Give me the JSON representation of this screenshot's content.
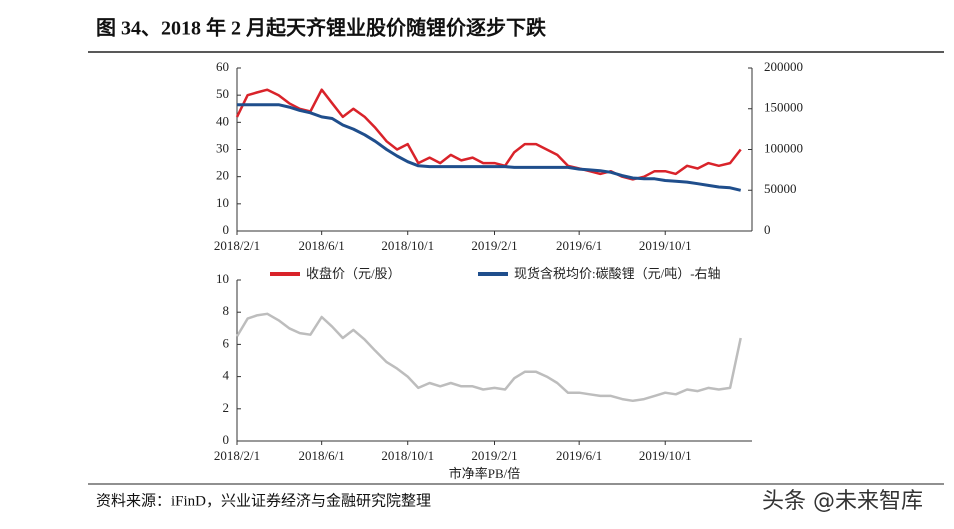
{
  "title": "图 34、2018 年 2 月起天齐锂业股价随锂价逐步下跌",
  "source": "资料来源：iFinD，兴业证券经济与金融研究院整理",
  "watermark": "头条 @未来智库",
  "chart_data": [
    {
      "type": "line",
      "x": [
        "2018/2/1",
        "2018/2/16",
        "2018/3/1",
        "2018/3/16",
        "2018/4/1",
        "2018/4/16",
        "2018/5/1",
        "2018/5/16",
        "2018/6/1",
        "2018/6/16",
        "2018/7/1",
        "2018/7/16",
        "2018/8/1",
        "2018/8/16",
        "2018/9/1",
        "2018/9/16",
        "2018/10/1",
        "2018/10/16",
        "2018/11/1",
        "2018/11/16",
        "2018/12/1",
        "2018/12/16",
        "2019/1/1",
        "2019/1/16",
        "2019/2/1",
        "2019/2/16",
        "2019/3/1",
        "2019/3/16",
        "2019/4/1",
        "2019/4/16",
        "2019/5/1",
        "2019/5/16",
        "2019/6/1",
        "2019/6/16",
        "2019/7/1",
        "2019/7/16",
        "2019/8/1",
        "2019/8/16",
        "2019/9/1",
        "2019/9/16",
        "2019/10/1",
        "2019/10/16",
        "2019/11/1",
        "2019/11/16",
        "2019/12/1",
        "2019/12/16",
        "2020/1/1",
        "2020/1/16"
      ],
      "series": [
        {
          "name": "收盘价（元/股）",
          "color": "#d9232a",
          "values": [
            42,
            50,
            51,
            52,
            50,
            47,
            45,
            44,
            52,
            47,
            42,
            45,
            42,
            38,
            33,
            30,
            32,
            25,
            27,
            25,
            28,
            26,
            27,
            25,
            25,
            24,
            29,
            32,
            32,
            30,
            28,
            24,
            23,
            22,
            21,
            22,
            20,
            19,
            20,
            22,
            22,
            21,
            24,
            23,
            25,
            24,
            25,
            30
          ]
        },
        {
          "name": "现货含税均价:碳酸锂（元/吨）-右轴",
          "color": "#1f4e8c",
          "axis": "y2",
          "values": [
            155000,
            155000,
            155000,
            155000,
            155000,
            152000,
            148000,
            145000,
            140000,
            138000,
            130000,
            125000,
            118000,
            110000,
            100000,
            92000,
            85000,
            80000,
            79000,
            79000,
            79000,
            79000,
            79000,
            79000,
            79000,
            79000,
            78000,
            78000,
            78000,
            78000,
            78000,
            78000,
            76000,
            75000,
            74000,
            72000,
            68000,
            65000,
            64000,
            64000,
            62000,
            61000,
            60000,
            58000,
            56000,
            54000,
            53000,
            50000
          ]
        }
      ],
      "xlim": [
        "2018/2/1",
        "2020/2/1"
      ],
      "xticks": [
        "2018/2/1",
        "2018/6/1",
        "2018/10/1",
        "2019/2/1",
        "2019/6/1",
        "2019/10/1"
      ],
      "ylim": [
        0,
        60
      ],
      "yticks": [
        0,
        10,
        20,
        30,
        40,
        50,
        60
      ],
      "y2lim": [
        0,
        200000
      ],
      "y2ticks": [
        0,
        50000,
        100000,
        150000,
        200000
      ]
    },
    {
      "type": "line",
      "x": [
        "2018/2/1",
        "2018/2/16",
        "2018/3/1",
        "2018/3/16",
        "2018/4/1",
        "2018/4/16",
        "2018/5/1",
        "2018/5/16",
        "2018/6/1",
        "2018/6/16",
        "2018/7/1",
        "2018/7/16",
        "2018/8/1",
        "2018/8/16",
        "2018/9/1",
        "2018/9/16",
        "2018/10/1",
        "2018/10/16",
        "2018/11/1",
        "2018/11/16",
        "2018/12/1",
        "2018/12/16",
        "2019/1/1",
        "2019/1/16",
        "2019/2/1",
        "2019/2/16",
        "2019/3/1",
        "2019/3/16",
        "2019/4/1",
        "2019/4/16",
        "2019/5/1",
        "2019/5/16",
        "2019/6/1",
        "2019/6/16",
        "2019/7/1",
        "2019/7/16",
        "2019/8/1",
        "2019/8/16",
        "2019/9/1",
        "2019/9/16",
        "2019/10/1",
        "2019/10/16",
        "2019/11/1",
        "2019/11/16",
        "2019/12/1",
        "2019/12/16",
        "2020/1/1",
        "2020/1/16"
      ],
      "xlabel": "市净率PB/倍",
      "series": [
        {
          "color": "#bdbdbd",
          "values": [
            6.5,
            7.6,
            7.8,
            7.9,
            7.5,
            7.0,
            6.7,
            6.6,
            7.7,
            7.1,
            6.4,
            6.9,
            6.3,
            5.6,
            4.9,
            4.5,
            4.0,
            3.3,
            3.6,
            3.4,
            3.6,
            3.4,
            3.4,
            3.2,
            3.3,
            3.2,
            3.9,
            4.3,
            4.3,
            4.0,
            3.6,
            3.0,
            3.0,
            2.9,
            2.8,
            2.8,
            2.6,
            2.5,
            2.6,
            2.8,
            3.0,
            2.9,
            3.2,
            3.1,
            3.3,
            3.2,
            3.3,
            6.4
          ]
        }
      ],
      "xlim": [
        "2018/2/1",
        "2020/2/1"
      ],
      "xticks": [
        "2018/2/1",
        "2018/6/1",
        "2018/10/1",
        "2019/2/1",
        "2019/6/1",
        "2019/10/1"
      ],
      "ylim": [
        0,
        10
      ],
      "yticks": [
        0,
        2,
        4,
        6,
        8,
        10
      ]
    }
  ]
}
